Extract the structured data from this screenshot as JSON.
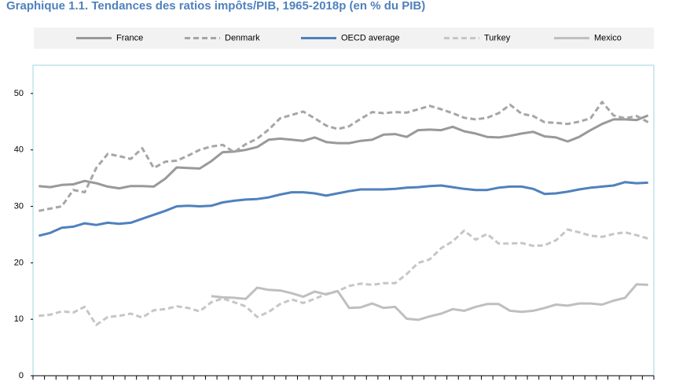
{
  "chart_data": {
    "type": "line",
    "title": "Graphique 1.1. Tendances des ratios impôts/PIB, 1965-2018p (en % du PIB)",
    "categories": [
      null,
      null,
      null,
      null,
      null,
      null,
      null,
      null,
      null,
      null,
      null,
      null,
      null,
      null,
      null,
      null,
      null,
      null,
      null,
      null,
      null,
      null,
      null,
      null,
      null,
      null,
      null,
      null,
      null,
      null,
      null,
      null,
      null,
      null,
      null,
      null,
      null,
      null,
      null,
      null,
      null,
      null,
      null,
      null,
      null,
      null,
      null,
      null,
      null,
      null,
      null,
      null,
      null,
      null
    ],
    "ylim": [
      0,
      55
    ],
    "yticks": [
      0,
      10,
      20,
      30,
      40,
      50
    ],
    "grid": false,
    "legend": "top",
    "series": [
      {
        "name": "France",
        "color": "#999999",
        "dash": false,
        "values": [
          33.6,
          33.4,
          33.8,
          33.9,
          34.5,
          34.1,
          33.5,
          33.2,
          33.6,
          33.6,
          33.5,
          34.9,
          36.9,
          36.8,
          36.7,
          38.0,
          39.6,
          39.7,
          40.0,
          40.5,
          41.8,
          42.0,
          41.8,
          41.6,
          42.2,
          41.4,
          41.2,
          41.2,
          41.6,
          41.8,
          42.7,
          42.8,
          42.3,
          43.5,
          43.6,
          43.5,
          44.1,
          43.3,
          42.9,
          42.3,
          42.2,
          42.5,
          42.9,
          43.2,
          42.4,
          42.2,
          41.5,
          42.3,
          43.5,
          44.6,
          45.4,
          45.4,
          45.3,
          46.1
        ]
      },
      {
        "name": "Denmark",
        "color": "#a6a6a6",
        "dash": true,
        "values": [
          29.2,
          29.6,
          30.0,
          32.9,
          32.5,
          36.8,
          39.3,
          38.9,
          38.4,
          40.3,
          36.8,
          37.9,
          38.1,
          39.0,
          40.0,
          40.6,
          40.9,
          39.6,
          41.0,
          42.0,
          43.6,
          45.6,
          46.2,
          46.8,
          45.6,
          44.3,
          43.7,
          44.2,
          45.5,
          46.7,
          46.5,
          46.7,
          46.6,
          47.2,
          47.8,
          47.2,
          46.5,
          45.7,
          45.4,
          45.7,
          46.5,
          48.0,
          46.4,
          46.0,
          44.9,
          44.8,
          44.6,
          45.0,
          45.6,
          48.5,
          46.1,
          45.6,
          46.0,
          44.9
        ]
      },
      {
        "name": "OECD average",
        "color": "#4f81bd",
        "dash": false,
        "values": [
          24.8,
          25.3,
          26.2,
          26.4,
          27.0,
          26.7,
          27.1,
          26.9,
          27.1,
          27.8,
          28.5,
          29.2,
          30.0,
          30.1,
          30.0,
          30.1,
          30.7,
          31.0,
          31.2,
          31.3,
          31.6,
          32.1,
          32.5,
          32.5,
          32.3,
          31.9,
          32.3,
          32.7,
          33.0,
          33.0,
          33.0,
          33.1,
          33.3,
          33.4,
          33.6,
          33.7,
          33.4,
          33.1,
          32.9,
          32.9,
          33.3,
          33.5,
          33.5,
          33.1,
          32.2,
          32.3,
          32.6,
          33.0,
          33.3,
          33.5,
          33.7,
          34.3,
          34.1,
          34.2
        ]
      },
      {
        "name": "Turkey",
        "color": "#c6c6c6",
        "dash": true,
        "values": [
          10.6,
          10.8,
          11.4,
          11.2,
          12.2,
          9.0,
          10.4,
          10.6,
          11.0,
          10.3,
          11.6,
          11.8,
          12.3,
          12.0,
          11.4,
          13.0,
          13.7,
          13.0,
          12.3,
          10.4,
          11.3,
          12.7,
          13.5,
          12.9,
          13.6,
          14.5,
          15.0,
          15.9,
          16.3,
          16.1,
          16.4,
          16.4,
          18.0,
          20.0,
          20.6,
          22.6,
          23.8,
          25.7,
          24.1,
          25.1,
          23.4,
          23.4,
          23.5,
          23.0,
          23.1,
          24.0,
          25.9,
          25.4,
          24.8,
          24.6,
          25.1,
          25.4,
          24.9,
          24.3
        ]
      },
      {
        "name": "Mexico",
        "color": "#bfbfbf",
        "dash": false,
        "values": [
          null,
          null,
          null,
          null,
          null,
          null,
          null,
          null,
          null,
          null,
          null,
          null,
          null,
          null,
          null,
          14.1,
          13.9,
          13.8,
          13.6,
          15.6,
          15.2,
          15.1,
          14.6,
          14.0,
          14.9,
          14.4,
          15.0,
          12.0,
          12.1,
          12.8,
          12.0,
          12.2,
          10.1,
          9.9,
          10.5,
          11.0,
          11.8,
          11.5,
          12.2,
          12.7,
          12.7,
          11.5,
          11.3,
          11.5,
          12.0,
          12.6,
          12.4,
          12.8,
          12.8,
          12.6,
          13.3,
          13.8,
          16.2,
          16.1
        ]
      }
    ]
  }
}
